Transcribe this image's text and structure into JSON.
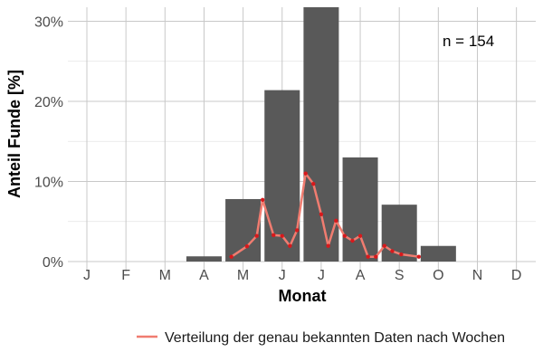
{
  "chart_data": {
    "type": "bar",
    "xlabel": "Monat",
    "ylabel": "Anteil Funde [%]",
    "annotation": "n = 154",
    "ylim": [
      0,
      32
    ],
    "y_ticks": [
      0,
      10,
      20,
      30
    ],
    "y_tick_labels": [
      "0%",
      "10%",
      "20%",
      "30%"
    ],
    "grid": true,
    "legend_position": "bottom",
    "categories": [
      "J",
      "F",
      "M",
      "A",
      "M",
      "J",
      "J",
      "A",
      "S",
      "O",
      "N",
      "D"
    ],
    "series": [
      {
        "kind": "bar",
        "values": [
          0,
          0,
          0,
          0.65,
          7.8,
          21.4,
          31.8,
          13.0,
          7.1,
          1.95,
          0,
          0
        ],
        "color": "#595959"
      },
      {
        "kind": "line",
        "name": "Verteilung der genau bekannten Daten nach Wochen",
        "color": "#f07c70",
        "marker_color": "#d7191c",
        "x": [
          4.7,
          5.1,
          5.35,
          5.5,
          5.78,
          6.0,
          6.2,
          6.38,
          6.6,
          6.8,
          7.0,
          7.18,
          7.38,
          7.6,
          7.8,
          8.0,
          8.2,
          8.4,
          8.62,
          8.82,
          9.05,
          9.5
        ],
        "y": [
          0.6,
          1.9,
          3.2,
          7.7,
          3.3,
          3.2,
          1.95,
          3.9,
          11.0,
          9.7,
          5.9,
          1.95,
          5.1,
          3.2,
          2.6,
          3.2,
          0.6,
          0.6,
          1.95,
          1.3,
          0.9,
          0.6
        ]
      }
    ]
  }
}
